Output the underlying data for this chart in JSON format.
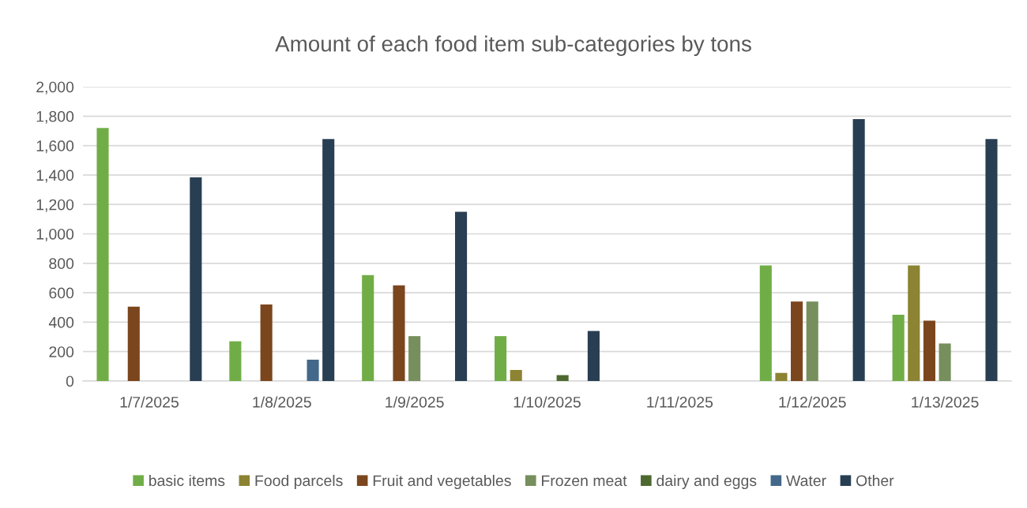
{
  "chart_data": {
    "type": "bar",
    "title": "Amount of each food item sub-categories by tons",
    "categories": [
      "1/7/2025",
      "1/8/2025",
      "1/9/2025",
      "1/10/2025",
      "1/11/2025",
      "1/12/2025",
      "1/13/2025"
    ],
    "series": [
      {
        "name": "basic items",
        "color": "#70ad47",
        "values": [
          1720,
          270,
          720,
          305,
          null,
          785,
          450
        ]
      },
      {
        "name": "Food parcels",
        "color": "#8c8333",
        "values": [
          null,
          null,
          null,
          75,
          null,
          55,
          785
        ]
      },
      {
        "name": "Fruit and vegetables",
        "color": "#7b461d",
        "values": [
          505,
          520,
          650,
          null,
          null,
          540,
          410
        ]
      },
      {
        "name": "Frozen meat",
        "color": "#768f5d",
        "values": [
          null,
          null,
          305,
          null,
          null,
          540,
          255
        ]
      },
      {
        "name": "dairy and eggs",
        "color": "#4e6930",
        "values": [
          null,
          null,
          null,
          40,
          null,
          null,
          null
        ]
      },
      {
        "name": "Water",
        "color": "#43688a",
        "values": [
          null,
          145,
          null,
          null,
          null,
          null,
          null
        ]
      },
      {
        "name": "Other",
        "color": "#283e53",
        "values": [
          1385,
          1645,
          1150,
          340,
          null,
          1780,
          1645
        ]
      }
    ],
    "ylim": [
      0,
      2000
    ],
    "yticks": [
      {
        "value": 0,
        "label": "0"
      },
      {
        "value": 200,
        "label": "200"
      },
      {
        "value": 400,
        "label": "400"
      },
      {
        "value": 600,
        "label": "600"
      },
      {
        "value": 800,
        "label": "800"
      },
      {
        "value": 1000,
        "label": "1,000"
      },
      {
        "value": 1200,
        "label": "1,200"
      },
      {
        "value": 1400,
        "label": "1,400"
      },
      {
        "value": 1600,
        "label": "1,600"
      },
      {
        "value": 1800,
        "label": "1,800"
      },
      {
        "value": 2000,
        "label": "2,000"
      }
    ],
    "grid": "y",
    "legend": "bottom"
  }
}
